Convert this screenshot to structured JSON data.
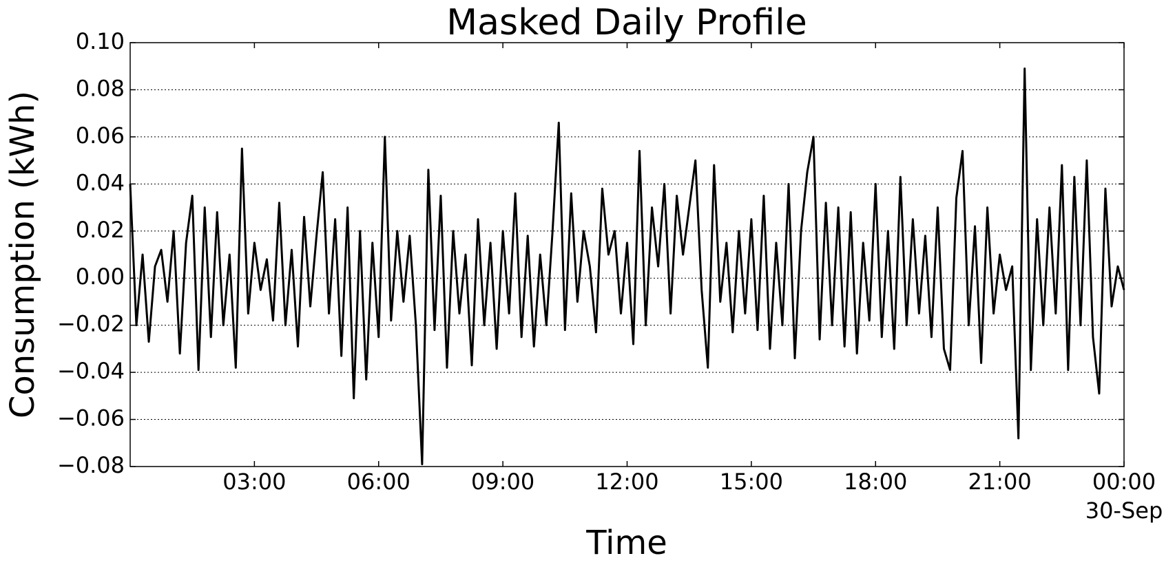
{
  "chart_data": {
    "type": "line",
    "title": "Masked Daily Profile",
    "x_label": "Time",
    "y_label": "Consumption (kWh)",
    "x": [
      0,
      0.15,
      0.3,
      0.45,
      0.6,
      0.75,
      0.9,
      1.05,
      1.2,
      1.35,
      1.5,
      1.65,
      1.8,
      1.95,
      2.1,
      2.25,
      2.4,
      2.55,
      2.7,
      2.85,
      3,
      3.15,
      3.3,
      3.45,
      3.6,
      3.75,
      3.9,
      4.05,
      4.2,
      4.35,
      4.5,
      4.65,
      4.8,
      4.95,
      5.1,
      5.25,
      5.4,
      5.55,
      5.7,
      5.85,
      6,
      6.15,
      6.3,
      6.45,
      6.6,
      6.75,
      6.9,
      7.05,
      7.2,
      7.35,
      7.5,
      7.65,
      7.8,
      7.95,
      8.1,
      8.25,
      8.4,
      8.55,
      8.7,
      8.85,
      9,
      9.15,
      9.3,
      9.45,
      9.6,
      9.75,
      9.9,
      10.05,
      10.2,
      10.35,
      10.5,
      10.65,
      10.8,
      10.95,
      11.1,
      11.25,
      11.4,
      11.55,
      11.7,
      11.85,
      12,
      12.15,
      12.3,
      12.45,
      12.6,
      12.75,
      12.9,
      13.05,
      13.2,
      13.35,
      13.5,
      13.65,
      13.8,
      13.95,
      14.1,
      14.25,
      14.4,
      14.55,
      14.7,
      14.85,
      15,
      15.15,
      15.3,
      15.45,
      15.6,
      15.75,
      15.9,
      16.05,
      16.2,
      16.35,
      16.5,
      16.65,
      16.8,
      16.95,
      17.1,
      17.25,
      17.4,
      17.55,
      17.7,
      17.85,
      18,
      18.15,
      18.3,
      18.45,
      18.6,
      18.75,
      18.9,
      19.05,
      19.2,
      19.35,
      19.5,
      19.65,
      19.8,
      19.95,
      20.1,
      20.25,
      20.4,
      20.55,
      20.7,
      20.85,
      21,
      21.15,
      21.3,
      21.45,
      21.6,
      21.75,
      21.9,
      22.05,
      22.2,
      22.35,
      22.5,
      22.65,
      22.8,
      22.95,
      23.1,
      23.25,
      23.4,
      23.55,
      23.7,
      23.85,
      24
    ],
    "series": [
      {
        "name": "Consumption",
        "color": "#000000",
        "values": [
          0.04,
          -0.02,
          0.01,
          -0.027,
          0.005,
          0.012,
          -0.01,
          0.02,
          -0.032,
          0.015,
          0.035,
          -0.039,
          0.03,
          -0.025,
          0.028,
          -0.02,
          0.01,
          -0.038,
          0.055,
          -0.015,
          0.015,
          -0.005,
          0.008,
          -0.018,
          0.032,
          -0.02,
          0.012,
          -0.029,
          0.026,
          -0.012,
          0.018,
          0.045,
          -0.015,
          0.025,
          -0.033,
          0.03,
          -0.051,
          0.02,
          -0.043,
          0.015,
          -0.025,
          0.06,
          -0.018,
          0.02,
          -0.01,
          0.018,
          -0.02,
          -0.079,
          0.046,
          -0.022,
          0.035,
          -0.038,
          0.02,
          -0.015,
          0.01,
          -0.037,
          0.025,
          -0.02,
          0.015,
          -0.03,
          0.02,
          -0.015,
          0.036,
          -0.025,
          0.018,
          -0.029,
          0.01,
          -0.02,
          0.02,
          0.066,
          -0.022,
          0.036,
          -0.01,
          0.02,
          0.005,
          -0.023,
          0.038,
          0.01,
          0.02,
          -0.015,
          0.015,
          -0.028,
          0.054,
          -0.02,
          0.03,
          0.005,
          0.04,
          -0.015,
          0.035,
          0.01,
          0.03,
          0.05,
          -0.005,
          -0.038,
          0.048,
          -0.01,
          0.015,
          -0.023,
          0.02,
          -0.015,
          0.025,
          -0.022,
          0.035,
          -0.03,
          0.015,
          -0.02,
          0.04,
          -0.034,
          0.02,
          0.045,
          0.06,
          -0.026,
          0.032,
          -0.02,
          0.03,
          -0.029,
          0.028,
          -0.032,
          0.015,
          -0.018,
          0.04,
          -0.025,
          0.02,
          -0.03,
          0.043,
          -0.02,
          0.025,
          -0.015,
          0.018,
          -0.025,
          0.03,
          -0.03,
          -0.039,
          0.034,
          0.054,
          -0.02,
          0.022,
          -0.036,
          0.03,
          -0.015,
          0.01,
          -0.005,
          0.005,
          -0.068,
          0.089,
          -0.039,
          0.025,
          -0.02,
          0.03,
          -0.015,
          0.048,
          -0.039,
          0.043,
          -0.02,
          0.05,
          -0.025,
          -0.049,
          0.038,
          -0.012,
          0.005,
          -0.005
        ]
      }
    ],
    "xlim": [
      0,
      24
    ],
    "xticks": [
      {
        "value": 3,
        "label": "03:00"
      },
      {
        "value": 6,
        "label": "06:00"
      },
      {
        "value": 9,
        "label": "09:00"
      },
      {
        "value": 12,
        "label": "12:00"
      },
      {
        "value": 15,
        "label": "15:00"
      },
      {
        "value": 18,
        "label": "18:00"
      },
      {
        "value": 21,
        "label": "21:00"
      },
      {
        "value": 24,
        "label": "00:00",
        "sublabel": "30-Sep"
      }
    ],
    "ylim": [
      -0.08,
      0.1
    ],
    "yticks": [
      {
        "value": -0.08,
        "label": "−0.08"
      },
      {
        "value": -0.06,
        "label": "−0.06"
      },
      {
        "value": -0.04,
        "label": "−0.04"
      },
      {
        "value": -0.02,
        "label": "−0.02"
      },
      {
        "value": 0,
        "label": "0.00"
      },
      {
        "value": 0.02,
        "label": "0.02"
      },
      {
        "value": 0.04,
        "label": "0.04"
      },
      {
        "value": 0.06,
        "label": "0.06"
      },
      {
        "value": 0.08,
        "label": "0.08"
      },
      {
        "value": 0.1,
        "label": "0.10"
      }
    ],
    "grid": true
  }
}
